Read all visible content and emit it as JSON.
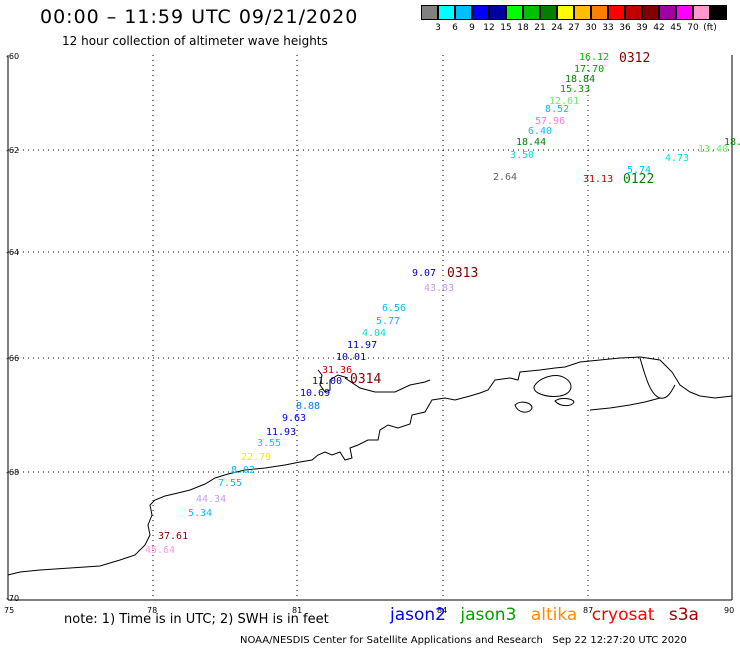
{
  "header": {
    "title": "00:00 – 11:59 UTC 09/21/2020",
    "subtitle": "12 hour collection of altimeter wave heights"
  },
  "color_scale": {
    "colors": [
      "#808080",
      "#00ffff",
      "#00bfff",
      "#0000ff",
      "#0000a0",
      "#00ff00",
      "#00c000",
      "#008000",
      "#ffff00",
      "#ffbf00",
      "#ff8000",
      "#ff0000",
      "#c00000",
      "#800000",
      "#a000a0",
      "#ff00ff",
      "#ff99cc",
      "#000000"
    ],
    "labels": [
      "3",
      "6",
      "9",
      "12",
      "15",
      "18",
      "21",
      "24",
      "27",
      "30",
      "33",
      "36",
      "39",
      "42",
      "45",
      "70",
      "(ft)"
    ]
  },
  "axes": {
    "lat_labels": [
      "-60",
      "-62",
      "-64",
      "-66",
      "-68",
      "-70"
    ],
    "lon_labels": [
      "75",
      "78",
      "81",
      "84",
      "87",
      "90"
    ]
  },
  "readings": [
    {
      "v": "16.12",
      "c": "#00c000"
    },
    {
      "v": "17.70",
      "c": "#00a000"
    },
    {
      "v": "18.84",
      "c": "#008000"
    },
    {
      "v": "15.33",
      "c": "#00a000"
    },
    {
      "v": "12.61",
      "c": "#66ee66"
    },
    {
      "v": "8.52",
      "c": "#00bfff"
    },
    {
      "v": "57.96",
      "c": "#ff77dd"
    },
    {
      "v": "6.40",
      "c": "#00bfff"
    },
    {
      "v": "18.44",
      "c": "#008000"
    },
    {
      "v": "3.50",
      "c": "#00dddd"
    },
    {
      "v": "2.64",
      "c": "#606060"
    },
    {
      "v": "31.13",
      "c": "#c00000"
    },
    {
      "v": "5.74",
      "c": "#00bfff"
    },
    {
      "v": "4.73",
      "c": "#00dddd"
    },
    {
      "v": "13.40",
      "c": "#66ee66"
    },
    {
      "v": "18.",
      "c": "#008000"
    },
    {
      "v": "9.07",
      "c": "#0000c0"
    },
    {
      "v": "43.83",
      "c": "#c0a0f0"
    },
    {
      "v": "6.56",
      "c": "#00bfff"
    },
    {
      "v": "5.77",
      "c": "#00bfff"
    },
    {
      "v": "4.04",
      "c": "#00dddd"
    },
    {
      "v": "11.97",
      "c": "#0000c0"
    },
    {
      "v": "10.01",
      "c": "#0000c0"
    },
    {
      "v": "31.36",
      "c": "#c00000"
    },
    {
      "v": "11.00",
      "c": "#0000c0"
    },
    {
      "v": "10.69",
      "c": "#0000c0"
    },
    {
      "v": "8.88",
      "c": "#0080ff"
    },
    {
      "v": "9.63",
      "c": "#0000ff"
    },
    {
      "v": "11.93",
      "c": "#0000c0"
    },
    {
      "v": "3.55",
      "c": "#00dddd"
    },
    {
      "v": "22.79",
      "c": "#eeee00"
    },
    {
      "v": "8.02",
      "c": "#00bfff"
    },
    {
      "v": "7.55",
      "c": "#00bfff"
    },
    {
      "v": "44.34",
      "c": "#c0a0f0"
    },
    {
      "v": "5.34",
      "c": "#00bfff"
    },
    {
      "v": "37.61",
      "c": "#800000"
    },
    {
      "v": "45.64",
      "c": "#ff99dd"
    }
  ],
  "pass_times": [
    {
      "t": "0312",
      "c": "#800000"
    },
    {
      "t": "0122",
      "c": "#008000"
    },
    {
      "t": "0313",
      "c": "#800000"
    },
    {
      "t": "0314",
      "c": "#800000"
    }
  ],
  "footer": {
    "note": "note: 1) Time is in UTC; 2) SWH is in feet",
    "satellites": [
      {
        "name": "jason2",
        "color": "#0000ff"
      },
      {
        "name": "jason3",
        "color": "#00a000"
      },
      {
        "name": "altika",
        "color": "#ff8c00"
      },
      {
        "name": "cryosat",
        "color": "#ff0000"
      },
      {
        "name": "s3a",
        "color": "#a00000"
      }
    ],
    "credit": "NOAA/NESDIS Center for Satellite Applications and Research",
    "timestamp": "Sep 22 12:27:20 UTC 2020"
  }
}
